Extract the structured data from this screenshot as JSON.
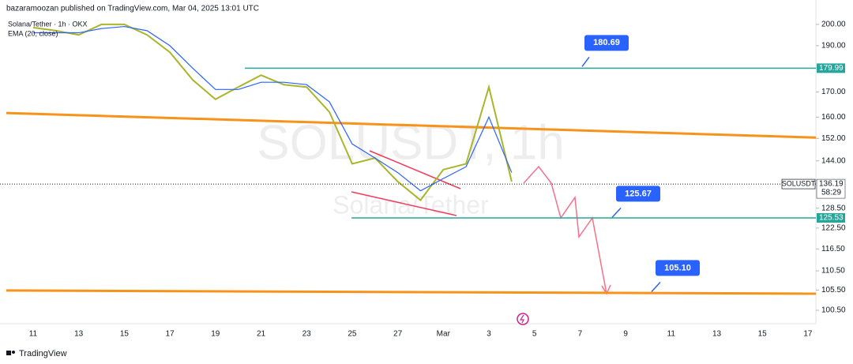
{
  "header": "bazaramoozan published on TradingView.com, Mar 04, 2025 13:01 UTC",
  "footer": "TradingView",
  "watermark": {
    "symbol": "SOLUSDT, 1h",
    "name": "Solana/Tether"
  },
  "chart_data": {
    "type": "line",
    "log_scale": true,
    "categories": [
      "11",
      null,
      "13",
      null,
      "15",
      null,
      "17",
      null,
      "19",
      null,
      "21",
      null,
      "23",
      null,
      "25",
      null,
      "27",
      null,
      "Mar",
      null,
      "3",
      null,
      "5",
      null,
      "7",
      null,
      "9",
      null,
      "11",
      null,
      "13",
      null,
      "15",
      null,
      "17"
    ],
    "series": [
      {
        "name": "Solana/Tether · 1h · OKX",
        "color": "#a9b62a",
        "values": [
          198.5,
          197,
          195,
          200,
          200,
          195,
          187,
          175,
          167,
          172,
          177,
          173,
          172,
          162,
          143,
          145,
          137,
          131,
          141,
          143,
          172,
          137,
          null,
          null,
          null,
          null,
          null,
          null,
          null,
          null,
          null,
          null,
          null,
          null,
          null
        ]
      },
      {
        "name": "EMA (20, close)",
        "color": "#2962ff",
        "values": [
          196,
          196,
          196,
          198,
          199,
          197,
          190,
          180,
          171,
          171,
          174,
          174,
          173,
          166,
          150,
          145,
          140,
          134,
          138,
          142,
          160,
          140,
          null,
          null,
          null,
          null,
          null,
          null,
          null,
          null,
          null,
          null,
          null,
          null,
          null
        ]
      }
    ],
    "ylim": [
      97.3,
      212.1
    ],
    "yticks": [
      {
        "value": 200,
        "label": "200.00"
      },
      {
        "value": 190,
        "label": "190.00"
      },
      {
        "value": 170,
        "label": "170.00"
      },
      {
        "value": 160,
        "label": "160.00"
      },
      {
        "value": 152,
        "label": "152.00"
      },
      {
        "value": 144,
        "label": "144.00"
      },
      {
        "value": 128.5,
        "label": "128.50"
      },
      {
        "value": 122.5,
        "label": "122.50"
      },
      {
        "value": 116.5,
        "label": "116.50"
      },
      {
        "value": 110.5,
        "label": "110.50"
      },
      {
        "value": 105.5,
        "label": "105.50"
      },
      {
        "value": 100.5,
        "label": "100.50"
      }
    ],
    "levels": [
      {
        "value": 179.99,
        "label": "179.99",
        "color": "#26a69a"
      },
      {
        "value": 125.53,
        "label": "125.53",
        "color": "#26a69a"
      }
    ],
    "trendlines": [
      {
        "color": "#f7931a",
        "values": [
          161.6,
          152.3
        ]
      },
      {
        "color": "#f7931a",
        "values": [
          105.4,
          104.6
        ]
      }
    ],
    "last_price": {
      "value": 136.19,
      "label": "136.19",
      "symbol": "SOLUSDT",
      "countdown": "58:29"
    },
    "annotations": [
      {
        "text": "180.69",
        "value": 180.69
      },
      {
        "text": "125.67",
        "value": 125.67
      },
      {
        "text": "105.10",
        "value": 105.1
      }
    ]
  }
}
